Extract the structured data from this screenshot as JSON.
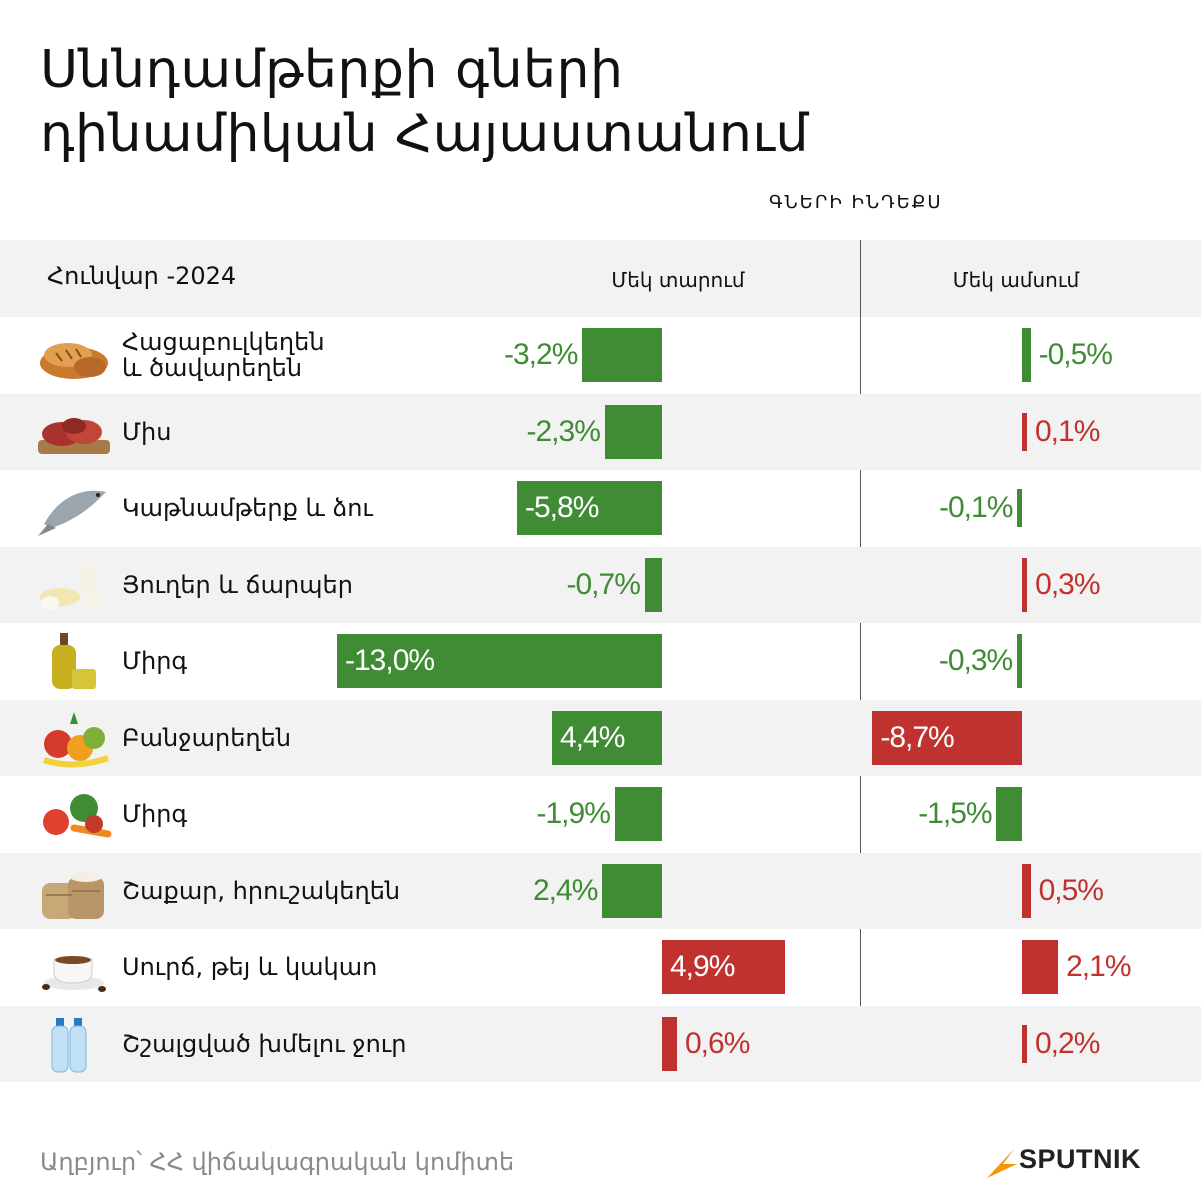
{
  "title": {
    "line1": "Սննդամթերքի գների",
    "line2": "դինամիկան Հայաստանում"
  },
  "index_label": "ԳՆԵՐԻ ԻՆԴԵՔՍ",
  "date_label": "Հունվար -2024",
  "source": "Աղբյուր՝ ՀՀ վիճակագրական կոմիտե",
  "brand": "SPUTNIK",
  "colors": {
    "green": "#3f8c35",
    "red": "#c0322f",
    "row_band": "#f2f2f2",
    "brand_orange": "#f39800"
  },
  "chart_data": {
    "type": "bar",
    "categories": [
      "Հացաբուլկեղեն և ծավարեղեն",
      "Միս",
      "Կաթնամթերք և ձու",
      "Յուղեր և ճարպեր",
      "Միրգ",
      "Բանջարեղեն",
      "Միրգ",
      "Շաքար, հրուշակեղեն",
      "Սուրճ, թեյ և կակաո",
      "Շշալցված խմելու ջուր"
    ],
    "series": [
      {
        "name": "Մեկ տարում",
        "values": [
          -3.2,
          -2.3,
          -5.8,
          -0.7,
          -13.0,
          4.4,
          -1.9,
          2.4,
          4.9,
          0.6
        ],
        "labels": [
          "-3,2%",
          "-2,3%",
          "-5,8%",
          "-0,7%",
          "-13,0%",
          "4,4%",
          "-1,9%",
          "2,4%",
          "4,9%",
          "0,6%"
        ],
        "bar_direction": [
          "left",
          "left",
          "left",
          "left",
          "left",
          "left",
          "left",
          "left",
          "right",
          "right"
        ],
        "bar_color": [
          "green",
          "green",
          "green",
          "green",
          "green",
          "green",
          "green",
          "green",
          "red",
          "red"
        ]
      },
      {
        "name": "Մեկ ամսում",
        "values": [
          -0.5,
          0.1,
          -0.1,
          0.3,
          -0.3,
          -8.7,
          -1.5,
          0.5,
          2.1,
          0.2
        ],
        "labels": [
          "-0,5%",
          "0,1%",
          "-0,1%",
          "0,3%",
          "-0,3%",
          "-8,7%",
          "-1,5%",
          "0,5%",
          "2,1%",
          "0,2%"
        ],
        "bar_direction": [
          "right",
          "right",
          "left",
          "right",
          "left",
          "left",
          "left",
          "right",
          "right",
          "right"
        ],
        "bar_color": [
          "green",
          "red",
          "green",
          "red",
          "green",
          "red",
          "green",
          "red",
          "red",
          "red"
        ]
      }
    ],
    "icons": [
      "bread-icon",
      "meat-icon",
      "fish-icon",
      "dairy-icon",
      "oil-icon",
      "fruit-icon",
      "vegetables-icon",
      "sugar-sacks-icon",
      "coffee-icon",
      "water-bottles-icon"
    ]
  }
}
